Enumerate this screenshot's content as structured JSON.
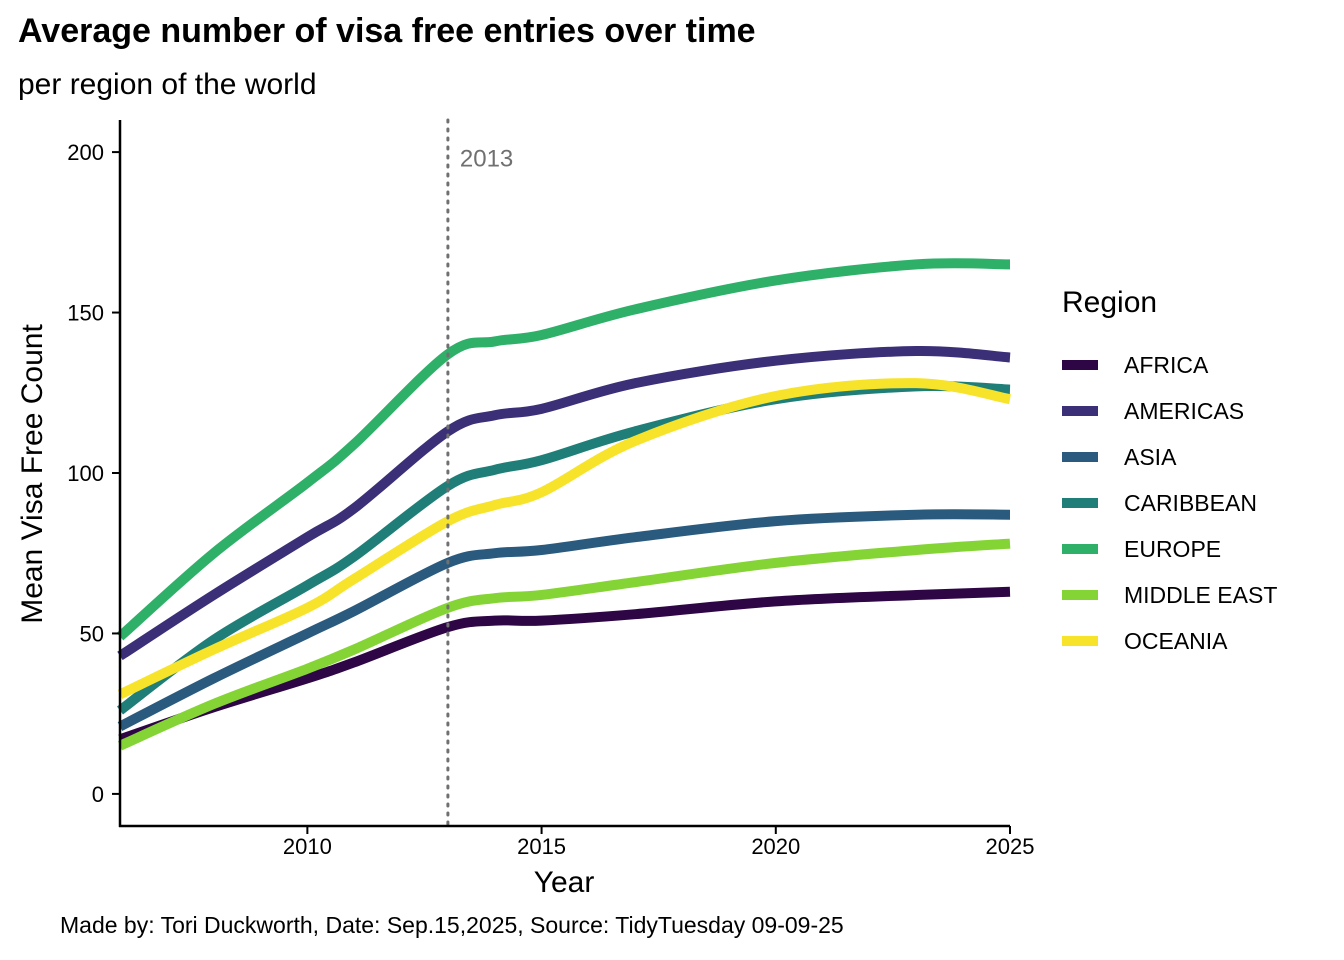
{
  "header": {
    "title": "Average number of visa free entries over time",
    "subtitle": "per region of the world"
  },
  "caption": "Made by: Tori Duckworth, Date: Sep.15,2025, Source: TidyTuesday 09-09-25",
  "chart_data": {
    "type": "line",
    "title": "Average number of visa free entries over time",
    "subtitle": "per region of the world",
    "xlabel": "Year",
    "ylabel": "Mean Visa Free Count",
    "xlim": [
      2006,
      2025
    ],
    "ylim": [
      -10,
      210
    ],
    "x_ticks": [
      2010,
      2015,
      2020,
      2025
    ],
    "y_ticks": [
      0,
      50,
      100,
      150,
      200
    ],
    "grid": false,
    "vline": {
      "x": 2013,
      "label": "2013",
      "style": "dotted",
      "color": "#707070"
    },
    "legend": {
      "title": "Region",
      "placement": "right"
    },
    "x": [
      2006,
      2008,
      2010,
      2011,
      2013,
      2014,
      2015,
      2017,
      2020,
      2023,
      2025
    ],
    "series": [
      {
        "name": "AFRICA",
        "color": "#2f0645",
        "values": [
          17,
          27,
          36,
          41,
          52,
          54,
          54,
          56,
          60,
          62,
          63
        ]
      },
      {
        "name": "AMERICAS",
        "color": "#3b2f78",
        "values": [
          43,
          62,
          80,
          89,
          113,
          118,
          120,
          128,
          135,
          138,
          136
        ]
      },
      {
        "name": "ASIA",
        "color": "#2a5b7e",
        "values": [
          21,
          36,
          50,
          57,
          72,
          75,
          76,
          80,
          85,
          87,
          87
        ]
      },
      {
        "name": "CARIBBEAN",
        "color": "#1f7f78",
        "values": [
          26,
          48,
          65,
          74,
          96,
          101,
          104,
          113,
          123,
          127,
          126
        ]
      },
      {
        "name": "EUROPE",
        "color": "#2fb069",
        "values": [
          49,
          75,
          97,
          109,
          137,
          141,
          143,
          151,
          160,
          165,
          165
        ]
      },
      {
        "name": "MIDDLE EAST",
        "color": "#84d435",
        "values": [
          15,
          28,
          39,
          45,
          58,
          61,
          62,
          66,
          72,
          76,
          78
        ]
      },
      {
        "name": "OCEANIA",
        "color": "#f7e32a",
        "values": [
          31,
          45,
          58,
          67,
          85,
          90,
          94,
          110,
          124,
          128,
          123
        ]
      }
    ]
  }
}
